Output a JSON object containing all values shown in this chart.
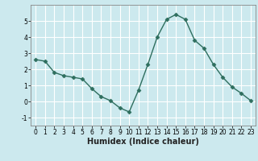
{
  "x": [
    0,
    1,
    2,
    3,
    4,
    5,
    6,
    7,
    8,
    9,
    10,
    11,
    12,
    13,
    14,
    15,
    16,
    17,
    18,
    19,
    20,
    21,
    22,
    23
  ],
  "y": [
    2.6,
    2.5,
    1.8,
    1.6,
    1.5,
    1.4,
    0.8,
    0.3,
    0.05,
    -0.4,
    -0.65,
    0.7,
    2.3,
    4.0,
    5.1,
    5.4,
    5.1,
    3.8,
    3.3,
    2.3,
    1.5,
    0.9,
    0.5,
    0.05
  ],
  "xlabel": "Humidex (Indice chaleur)",
  "line_color": "#2e6e5e",
  "marker": "D",
  "marker_size": 2.5,
  "bg_color": "#cce9ee",
  "grid_color": "#ffffff",
  "grid_minor_color": "#d8eef2",
  "xlim": [
    -0.5,
    23.5
  ],
  "ylim": [
    -1.5,
    6.0
  ],
  "yticks": [
    -1,
    0,
    1,
    2,
    3,
    4,
    5
  ],
  "xticks": [
    0,
    1,
    2,
    3,
    4,
    5,
    6,
    7,
    8,
    9,
    10,
    11,
    12,
    13,
    14,
    15,
    16,
    17,
    18,
    19,
    20,
    21,
    22,
    23
  ],
  "tick_fontsize": 5.5,
  "xlabel_fontsize": 7.0,
  "spine_color": "#888888"
}
